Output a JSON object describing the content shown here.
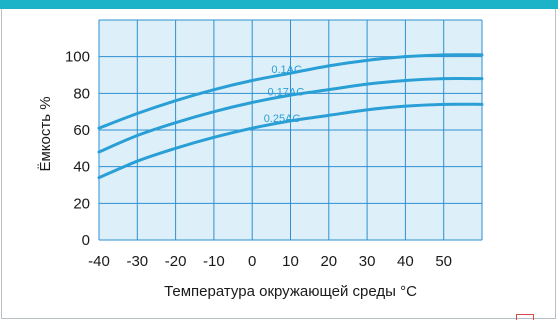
{
  "colors": {
    "accent_bar": "#1cb3c8",
    "plot_background": "#ddf0fa",
    "grid": "#2f8fd0",
    "curve": "#2a9fd6"
  },
  "chart_data": {
    "type": "line",
    "xlabel": "Температура окружающей среды °C",
    "ylabel": "Ёмкость %",
    "xlim": [
      -40,
      60
    ],
    "ylim": [
      0,
      120
    ],
    "xticks": [
      -40,
      -30,
      -20,
      -10,
      0,
      10,
      20,
      30,
      40,
      50
    ],
    "yticks": [
      0,
      20,
      40,
      60,
      80,
      100
    ],
    "grid": true,
    "series": [
      {
        "name": "0.1AC",
        "x": [
          -40,
          -30,
          -20,
          -10,
          0,
          10,
          20,
          30,
          40,
          50,
          60
        ],
        "y": [
          61,
          69,
          76,
          82,
          87,
          91,
          95,
          98,
          100,
          101,
          101
        ]
      },
      {
        "name": "0.17AC",
        "x": [
          -40,
          -30,
          -20,
          -10,
          0,
          10,
          20,
          30,
          40,
          50,
          60
        ],
        "y": [
          48,
          57,
          64,
          70,
          75,
          79,
          82,
          85,
          87,
          88,
          88
        ]
      },
      {
        "name": "0.25AC",
        "x": [
          -40,
          -30,
          -20,
          -10,
          0,
          10,
          20,
          30,
          40,
          50,
          60
        ],
        "y": [
          34,
          43,
          50,
          56,
          61,
          65,
          68,
          71,
          73,
          74,
          74
        ]
      }
    ],
    "curve_label_at_x": [
      5,
      4,
      3
    ]
  }
}
